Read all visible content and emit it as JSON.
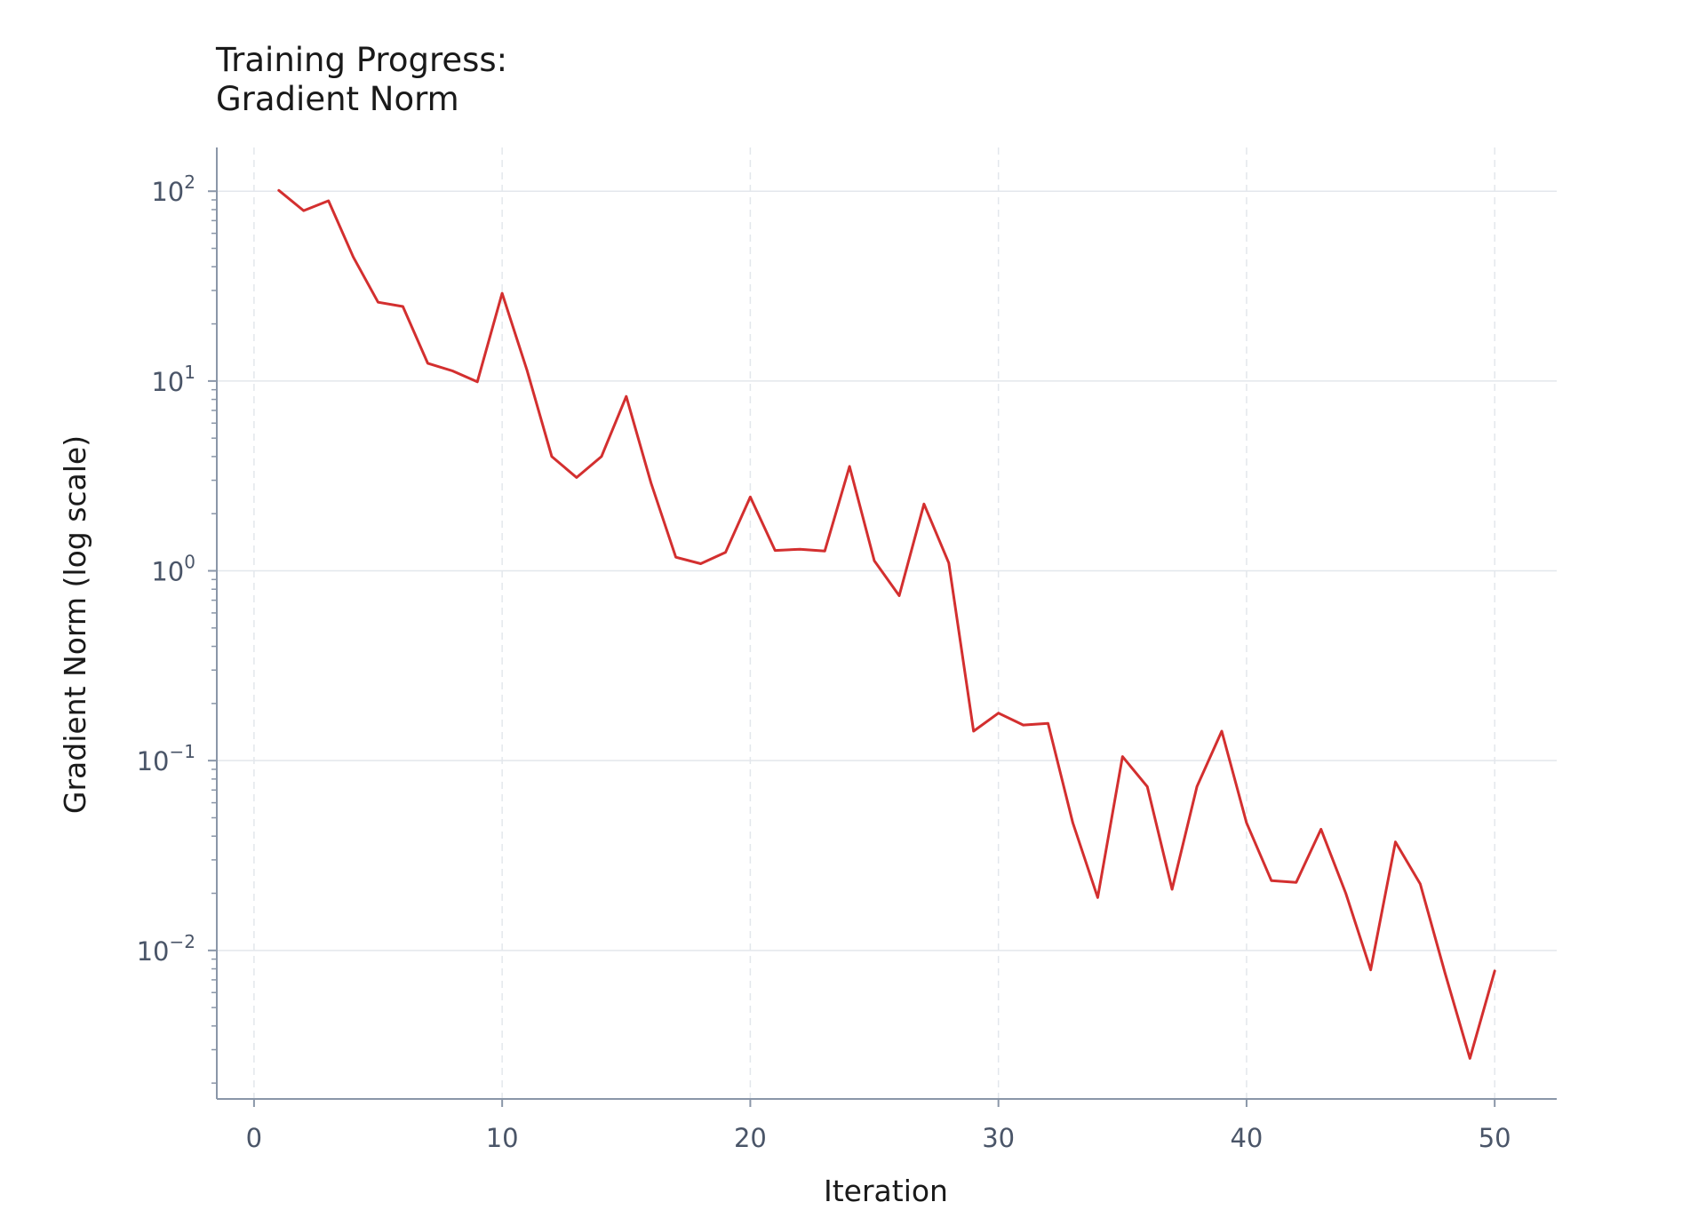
{
  "chart_data": {
    "type": "line",
    "title_lines": [
      "Training Progress:",
      "Gradient Norm"
    ],
    "xlabel": "Iteration",
    "ylabel": "Gradient Norm (log scale)",
    "xlim": [
      -1.5,
      52.5
    ],
    "ylim": [
      0.00165,
      170
    ],
    "yscale": "log",
    "grid": true,
    "x_ticks": [
      0,
      10,
      20,
      30,
      40,
      50
    ],
    "x_tick_labels": [
      "0",
      "10",
      "20",
      "30",
      "40",
      "50"
    ],
    "y_ticks": [
      0.01,
      0.1,
      1,
      10,
      100
    ],
    "y_tick_labels": [
      {
        "base": "10",
        "exp": "−2"
      },
      {
        "base": "10",
        "exp": "−1"
      },
      {
        "base": "10",
        "exp": "0"
      },
      {
        "base": "10",
        "exp": "1"
      },
      {
        "base": "10",
        "exp": "2"
      }
    ],
    "series": [
      {
        "color": "#d32f2f",
        "x": [
          1,
          2,
          3,
          4,
          5,
          6,
          7,
          8,
          9,
          10,
          11,
          12,
          13,
          14,
          15,
          16,
          17,
          18,
          19,
          20,
          21,
          22,
          23,
          24,
          25,
          26,
          27,
          28,
          29,
          30,
          31,
          32,
          33,
          34,
          35,
          36,
          37,
          38,
          39,
          40,
          41,
          42,
          43,
          44,
          45,
          46,
          47,
          48,
          49,
          50
        ],
        "y": [
          101,
          79,
          89,
          45,
          26,
          24.7,
          12.4,
          11.3,
          9.9,
          29,
          11.4,
          4,
          3.1,
          4,
          8.3,
          2.9,
          1.18,
          1.09,
          1.25,
          2.45,
          1.28,
          1.3,
          1.27,
          3.55,
          1.13,
          0.74,
          2.25,
          1.1,
          0.143,
          0.178,
          0.154,
          0.157,
          0.047,
          0.019,
          0.105,
          0.073,
          0.021,
          0.073,
          0.143,
          0.047,
          0.0233,
          0.0228,
          0.0435,
          0.02,
          0.0079,
          0.0373,
          0.0224,
          0.0076,
          0.0027,
          0.0078
        ]
      }
    ]
  }
}
